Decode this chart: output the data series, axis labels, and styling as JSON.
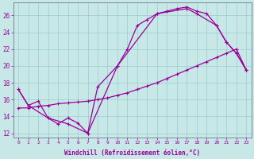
{
  "xlabel": "Windchill (Refroidissement éolien,°C)",
  "bg_color": "#c8e8e8",
  "line_color": "#990099",
  "grid_color": "#99cccc",
  "xlim": [
    -0.5,
    23.5
  ],
  "ylim": [
    11.5,
    27.5
  ],
  "xticks": [
    0,
    1,
    2,
    3,
    4,
    5,
    6,
    7,
    8,
    9,
    10,
    11,
    12,
    13,
    14,
    15,
    16,
    17,
    18,
    19,
    20,
    21,
    22,
    23
  ],
  "yticks": [
    12,
    14,
    16,
    18,
    20,
    22,
    24,
    26
  ],
  "line1_x": [
    0,
    1,
    2,
    3,
    4,
    5,
    6,
    7,
    8,
    10,
    11,
    12,
    13,
    14,
    15,
    16,
    17,
    18,
    19,
    20,
    21,
    22,
    23
  ],
  "line1_y": [
    17.2,
    15.3,
    15.8,
    13.8,
    13.1,
    13.8,
    13.2,
    12.0,
    17.5,
    20.0,
    22.0,
    24.8,
    25.5,
    26.2,
    26.5,
    26.8,
    27.0,
    26.5,
    26.2,
    24.8,
    22.8,
    21.5,
    19.5
  ],
  "line2_x": [
    0,
    1,
    2,
    3,
    4,
    5,
    6,
    7,
    8,
    9,
    10,
    11,
    12,
    13,
    14,
    15,
    16,
    17,
    18,
    19,
    20,
    21,
    22,
    23
  ],
  "line2_y": [
    15.0,
    15.0,
    15.2,
    15.3,
    15.5,
    15.6,
    15.7,
    15.8,
    16.0,
    16.2,
    16.5,
    16.8,
    17.2,
    17.6,
    18.0,
    18.5,
    19.0,
    19.5,
    20.0,
    20.5,
    21.0,
    21.5,
    22.0,
    19.5
  ],
  "line3_x": [
    0,
    1,
    3,
    5,
    7,
    10,
    14,
    17,
    18,
    20,
    21,
    22,
    23
  ],
  "line3_y": [
    17.2,
    15.3,
    13.8,
    13.1,
    12.0,
    20.0,
    26.2,
    26.8,
    26.2,
    24.8,
    22.8,
    21.5,
    19.5
  ]
}
